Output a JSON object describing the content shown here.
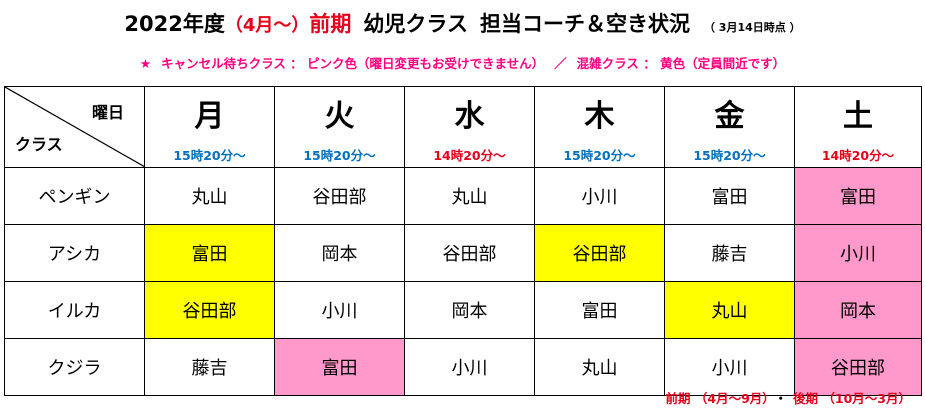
{
  "title": {
    "year": "2022年度",
    "months": "（4月～）",
    "term": "前期",
    "class_name": "幼児クラス",
    "rest": "担当コーチ＆空き状況",
    "as_of": "（ 3月14日時点 ）"
  },
  "legend": {
    "star": "★",
    "cancel_wait": "キャンセル待ちクラス ： ピンク色（曜日変更もお受けできません）",
    "slash": "／",
    "busy": "混雑クラス ： 黄色（定員間近です）"
  },
  "colors": {
    "pink": "#ff99cc",
    "yellow": "#ffff00",
    "time_blue": "#0070c0",
    "time_red": "#e6001a"
  },
  "table": {
    "corner_top": "曜日",
    "corner_bottom": "クラス",
    "days": [
      {
        "label": "月",
        "time": "15時20分～",
        "time_color": "blue"
      },
      {
        "label": "火",
        "time": "15時20分～",
        "time_color": "blue"
      },
      {
        "label": "水",
        "time": "14時20分～",
        "time_color": "red"
      },
      {
        "label": "木",
        "time": "15時20分～",
        "time_color": "blue"
      },
      {
        "label": "金",
        "time": "15時20分～",
        "time_color": "blue"
      },
      {
        "label": "土",
        "time": "14時20分～",
        "time_color": "red"
      }
    ],
    "rows": [
      {
        "class": "ペンギン",
        "cells": [
          {
            "coach": "丸山",
            "status": "none"
          },
          {
            "coach": "谷田部",
            "status": "none"
          },
          {
            "coach": "丸山",
            "status": "none"
          },
          {
            "coach": "小川",
            "status": "none"
          },
          {
            "coach": "富田",
            "status": "none"
          },
          {
            "coach": "富田",
            "status": "pink"
          }
        ]
      },
      {
        "class": "アシカ",
        "cells": [
          {
            "coach": "富田",
            "status": "yellow"
          },
          {
            "coach": "岡本",
            "status": "none"
          },
          {
            "coach": "谷田部",
            "status": "none"
          },
          {
            "coach": "谷田部",
            "status": "yellow"
          },
          {
            "coach": "藤吉",
            "status": "none"
          },
          {
            "coach": "小川",
            "status": "pink"
          }
        ]
      },
      {
        "class": "イルカ",
        "cells": [
          {
            "coach": "谷田部",
            "status": "yellow"
          },
          {
            "coach": "小川",
            "status": "none"
          },
          {
            "coach": "岡本",
            "status": "none"
          },
          {
            "coach": "富田",
            "status": "none"
          },
          {
            "coach": "丸山",
            "status": "yellow"
          },
          {
            "coach": "岡本",
            "status": "pink"
          }
        ]
      },
      {
        "class": "クジラ",
        "cells": [
          {
            "coach": "藤吉",
            "status": "none"
          },
          {
            "coach": "富田",
            "status": "pink"
          },
          {
            "coach": "小川",
            "status": "none"
          },
          {
            "coach": "丸山",
            "status": "none"
          },
          {
            "coach": "小川",
            "status": "none"
          },
          {
            "coach": "谷田部",
            "status": "pink"
          }
        ]
      }
    ]
  },
  "footer": {
    "first_term": "前期 （4月～9月）",
    "separator": "・",
    "second_term": "後期 （10月～3月）"
  }
}
